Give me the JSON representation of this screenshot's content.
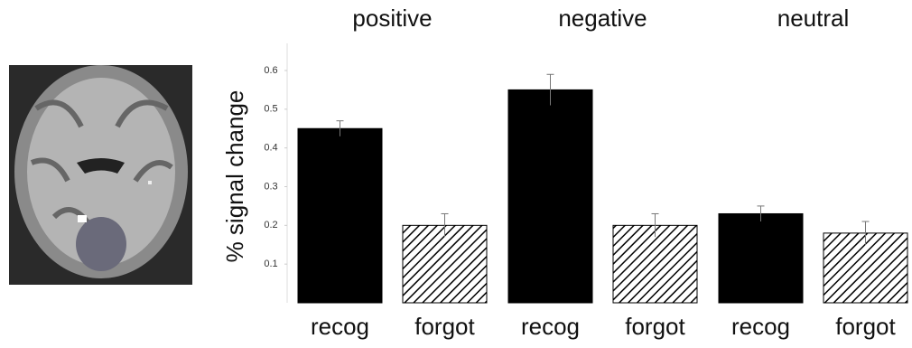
{
  "chart_data": {
    "type": "bar",
    "y_label": "% signal change",
    "categories": [
      "positive",
      "negative",
      "neutral"
    ],
    "series": [
      {
        "name": "recog",
        "color": "#000000",
        "hatch": false,
        "values": [
          0.45,
          0.55,
          0.23
        ],
        "errors": [
          0.02,
          0.04,
          0.02
        ]
      },
      {
        "name": "forgot",
        "color": "#000000",
        "hatch": true,
        "values": [
          0.2,
          0.2,
          0.18
        ],
        "errors": [
          0.03,
          0.03,
          0.03
        ]
      }
    ],
    "ylim": [
      0,
      0.67
    ],
    "yticks": [
      0.1,
      0.2,
      0.3,
      0.4,
      0.5,
      0.6
    ]
  }
}
